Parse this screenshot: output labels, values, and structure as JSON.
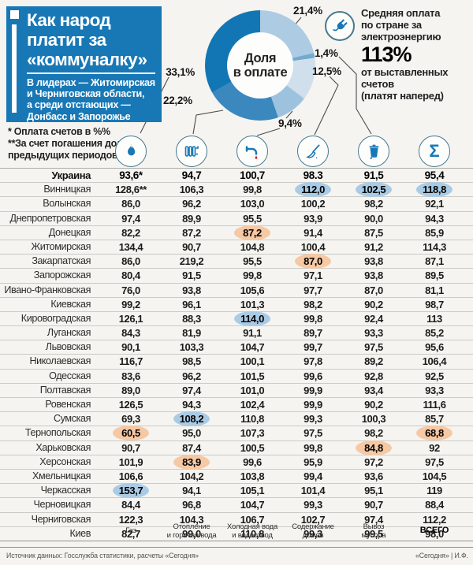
{
  "colors": {
    "brand_blue": "#1878b6",
    "highlight_blue": "#a9cbe5",
    "highlight_orange": "#f6c8a3",
    "accent_red": "#c9271e"
  },
  "header": {
    "title_lines": [
      "Как народ",
      "платит за",
      "«коммуналку»"
    ],
    "subtitle_lines": [
      "В лидерах — Житомирская",
      "и Черниговская области,",
      "а среди отстающих —",
      "Донбасс и Запорожье"
    ],
    "footnote_lines": [
      "* Оплата счетов в %%",
      "**За счет погашения долгов",
      "предыдущих периодов"
    ]
  },
  "electricity_note": {
    "lines_before": [
      "Средняя оплата",
      "по стране за",
      "электроэнергию"
    ],
    "value": "113%",
    "lines_after": [
      "от выставленных",
      "счетов",
      "(платят наперед)"
    ]
  },
  "chart_data": {
    "type": "pie",
    "title": "Доля в оплате",
    "center_label_lines": [
      "Доля",
      "в оплате"
    ],
    "legend_position": "callout-labels",
    "slices": [
      {
        "label": "21,4%",
        "value": 21.4,
        "category": "Электроэнергия",
        "color": "#aecbe4"
      },
      {
        "label": "1,4%",
        "value": 1.4,
        "category": "Вывоз мусора",
        "color": "#74a9d0"
      },
      {
        "label": "12,5%",
        "value": 12.5,
        "category": "Содержание домов",
        "color": "#cfdfec"
      },
      {
        "label": "9,4%",
        "value": 9.4,
        "category": "Холодная вода и водоотвод",
        "color": "#9dc2de"
      },
      {
        "label": "22,2%",
        "value": 22.2,
        "category": "Отопление и горячая вода",
        "color": "#3a88be"
      },
      {
        "label": "33,1%",
        "value": 33.1,
        "category": "Газ",
        "color": "#1276b4"
      }
    ]
  },
  "icons": [
    "gas-flame",
    "heating-radiator",
    "water-faucet",
    "house-broom",
    "garbage-bin",
    "total-sigma"
  ],
  "table": {
    "columns": [
      {
        "label_lines": [
          "Газ"
        ],
        "bold": false
      },
      {
        "label_lines": [
          "Отопление",
          "и горячая вода"
        ],
        "bold": false
      },
      {
        "label_lines": [
          "Холодная вода",
          "и водоотвод"
        ],
        "bold": false
      },
      {
        "label_lines": [
          "Содержание",
          "домов"
        ],
        "bold": false
      },
      {
        "label_lines": [
          "Вывоз",
          "мусора"
        ],
        "bold": false
      },
      {
        "label_lines": [
          "ВСЕГО"
        ],
        "bold": true
      }
    ],
    "rows": [
      {
        "name": "Украина",
        "country": true,
        "values": [
          "93,6*",
          "94,7",
          "100,7",
          "98.3",
          "91,5",
          "95,4"
        ]
      },
      {
        "name": "Винницкая",
        "values": [
          "128,6**",
          "106,3",
          "99,8",
          "112,0",
          "102,5",
          "118,8"
        ],
        "hl": {
          "3": "blue",
          "4": "blue",
          "5": "blue"
        }
      },
      {
        "name": "Волынская",
        "values": [
          "86,0",
          "96,2",
          "103,0",
          "100,2",
          "98,2",
          "92,1"
        ]
      },
      {
        "name": "Днепропетровская",
        "values": [
          "97,4",
          "89,9",
          "95,5",
          "93,9",
          "90,0",
          "94,3"
        ]
      },
      {
        "name": "Донецкая",
        "values": [
          "82,2",
          "87,2",
          "87,2",
          "91,4",
          "87,5",
          "85,9"
        ],
        "hl": {
          "2": "orange"
        }
      },
      {
        "name": "Житомирская",
        "values": [
          "134,4",
          "90,7",
          "104,8",
          "100,4",
          "91,2",
          "114,3"
        ]
      },
      {
        "name": "Закарпатская",
        "values": [
          "86,0",
          "219,2",
          "95,5",
          "87,0",
          "93,8",
          "87,1"
        ],
        "hl": {
          "3": "orange"
        }
      },
      {
        "name": "Запорожская",
        "values": [
          "80,4",
          "91,5",
          "99,8",
          "97,1",
          "93,8",
          "89,5"
        ]
      },
      {
        "name": "Ивано-Франковская",
        "values": [
          "76,0",
          "93,8",
          "105,6",
          "97,7",
          "87,0",
          "81,1"
        ]
      },
      {
        "name": "Киевская",
        "values": [
          "99,2",
          "96,1",
          "101,3",
          "98,2",
          "90,2",
          "98,7"
        ]
      },
      {
        "name": "Кировоградская",
        "values": [
          "126,1",
          "88,3",
          "114,0",
          "99,8",
          "92,4",
          "113"
        ],
        "hl": {
          "2": "blue"
        }
      },
      {
        "name": "Луганская",
        "values": [
          "84,3",
          "81,9",
          "91,1",
          "89,7",
          "93,3",
          "85,2"
        ]
      },
      {
        "name": "Львовская",
        "values": [
          "90,1",
          "103,3",
          "104,7",
          "99,7",
          "97,5",
          "95,6"
        ]
      },
      {
        "name": "Николаевская",
        "values": [
          "116,7",
          "98,5",
          "100,1",
          "97,8",
          "89,2",
          "106,4"
        ]
      },
      {
        "name": "Одесская",
        "values": [
          "83,6",
          "96,2",
          "101,5",
          "99,6",
          "92,8",
          "92,5"
        ]
      },
      {
        "name": "Полтавская",
        "values": [
          "89,0",
          "97,4",
          "101,0",
          "99,9",
          "93,4",
          "93,3"
        ]
      },
      {
        "name": "Ровенская",
        "values": [
          "126,5",
          "94,3",
          "102,4",
          "99,9",
          "90,2",
          "111,6"
        ]
      },
      {
        "name": "Сумская",
        "values": [
          "69,3",
          "108,2",
          "110,8",
          "99,3",
          "100,3",
          "85,7"
        ],
        "hl": {
          "1": "blue"
        }
      },
      {
        "name": "Тернопольская",
        "values": [
          "60,5",
          "95,0",
          "107,3",
          "97,5",
          "98,2",
          "68,8"
        ],
        "hl": {
          "0": "orange",
          "5": "orange"
        }
      },
      {
        "name": "Харьковская",
        "values": [
          "90,7",
          "87,4",
          "100,5",
          "99,8",
          "84,8",
          "92"
        ],
        "hl": {
          "4": "orange"
        }
      },
      {
        "name": "Херсонская",
        "values": [
          "101,9",
          "83,9",
          "99,6",
          "95,9",
          "97,2",
          "97,5"
        ],
        "hl": {
          "1": "orange"
        }
      },
      {
        "name": "Хмельницкая",
        "values": [
          "106,6",
          "104,2",
          "103,8",
          "99,4",
          "93,6",
          "104,5"
        ]
      },
      {
        "name": "Черкасская",
        "values": [
          "153,7",
          "94,1",
          "105,1",
          "101,4",
          "95,1",
          "119"
        ],
        "hl": {
          "0": "blue"
        }
      },
      {
        "name": "Черновицкая",
        "values": [
          "84,4",
          "96,8",
          "104,7",
          "99,3",
          "90,7",
          "88,4"
        ]
      },
      {
        "name": "Черниговская",
        "values": [
          "122,3",
          "104,3",
          "106,7",
          "102,7",
          "97,4",
          "112,2"
        ]
      },
      {
        "name": "Киев",
        "values": [
          "82,7",
          "99,0",
          "110,8",
          "99,3",
          "99,5",
          "98,0"
        ]
      }
    ]
  },
  "footer": {
    "source": "Источник данных: Госслужба статистики, расчеты «Сегодня»",
    "credit": "«Сегодня» | И.Ф."
  }
}
